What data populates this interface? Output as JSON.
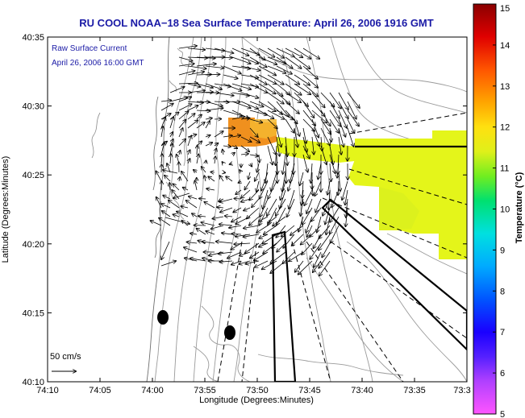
{
  "title": "RU COOL  NOAA−18  Sea Surface Temperature:  April 26, 2006 1916 GMT",
  "current_label_line1": "Raw Surface Current",
  "current_label_line2": "April 26, 2006 16:00 GMT",
  "scale_label": "50 cm/s",
  "x_axis_label": "Longitude (Degrees:Minutes)",
  "y_axis_label": "Latitude (Degrees:Minutes)",
  "colorbar_label": "Temperature (°C)",
  "x_ticks": [
    "74:10",
    "74:05",
    "74:00",
    "73:55",
    "73:50",
    "73:45",
    "73:40",
    "73:35",
    "73:3"
  ],
  "y_ticks": [
    "40:35",
    "40:30",
    "40:25",
    "40:20",
    "40:15",
    "40:10"
  ],
  "colorbar_ticks": [
    "15",
    "14",
    "13",
    "12",
    "11",
    "10",
    "9",
    "8",
    "7",
    "6",
    "5"
  ],
  "colors": {
    "title": "#1a1aa6",
    "land": "#ffffff",
    "contour": "#9a9a9a",
    "warm_patch": "#f0901e",
    "sst_patch": "#e4f51a",
    "sst_patch_edge": "#d7ef20"
  },
  "markers": [
    {
      "name": "buoy-marker-1"
    },
    {
      "name": "buoy-marker-2"
    }
  ]
}
